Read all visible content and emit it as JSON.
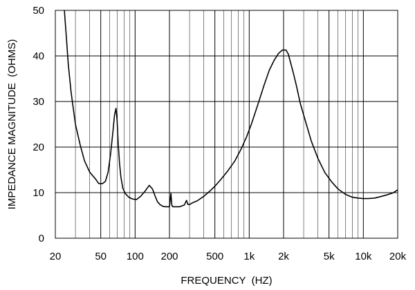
{
  "chart_data": {
    "type": "line",
    "title": "",
    "xlabel": "FREQUENCY  (HZ)",
    "ylabel": "IMPEDANCE MAGNITUDE  (OHMS)",
    "x_scale": "log",
    "xlim": [
      20,
      20000
    ],
    "ylim": [
      0,
      50
    ],
    "x_ticks": [
      20,
      50,
      100,
      200,
      500,
      1000,
      2000,
      5000,
      10000,
      20000
    ],
    "x_tick_labels": [
      "20",
      "50",
      "100",
      "200",
      "500",
      "1k",
      "2k",
      "5k",
      "10k",
      "20k"
    ],
    "y_ticks": [
      0,
      10,
      20,
      30,
      40,
      50
    ],
    "y_tick_labels": [
      "0",
      "10",
      "20",
      "30",
      "40",
      "50"
    ],
    "grid": true,
    "series": [
      {
        "x": [
          24,
          25,
          26,
          27.5,
          30,
          33,
          36,
          40,
          45,
          48,
          52,
          55,
          58,
          61,
          64,
          66,
          68,
          69.5,
          71,
          73,
          75,
          78,
          82,
          88,
          95,
          103,
          112,
          122,
          133,
          142,
          150,
          157,
          165,
          175,
          185,
          200,
          206,
          208,
          210,
          214,
          225,
          245,
          270,
          282,
          290,
          300,
          320,
          350,
          400,
          450,
          500,
          560,
          650,
          750,
          850,
          950,
          1050,
          1200,
          1350,
          1500,
          1650,
          1800,
          1950,
          2100,
          2200,
          2300,
          2450,
          2600,
          2800,
          3100,
          3500,
          4000,
          4600,
          5300,
          6000,
          7000,
          8000,
          9000,
          10000,
          11000,
          12500,
          14000,
          16000,
          18000,
          20000
        ],
        "y": [
          50,
          44,
          38,
          32,
          25,
          20.5,
          17,
          14.5,
          13,
          12,
          12,
          12.5,
          14.5,
          18.5,
          23.5,
          27,
          28.5,
          26,
          21,
          16.5,
          13.5,
          11,
          9.8,
          9,
          8.6,
          8.5,
          9.2,
          10.3,
          11.6,
          10.8,
          9.2,
          8,
          7.4,
          7,
          6.9,
          6.9,
          9.8,
          8.5,
          7.2,
          6.9,
          6.9,
          6.9,
          7.3,
          8.3,
          7.4,
          7.4,
          7.8,
          8.2,
          9.2,
          10.3,
          11.4,
          12.8,
          14.8,
          17,
          19.6,
          22.3,
          25.2,
          29.6,
          33.6,
          36.9,
          39,
          40.5,
          41.3,
          41.3,
          40.4,
          38.6,
          36,
          33.3,
          29.6,
          25.8,
          21.3,
          17.5,
          14.4,
          12.3,
          10.8,
          9.6,
          9,
          8.8,
          8.7,
          8.7,
          8.8,
          9.1,
          9.5,
          9.9,
          10.6
        ]
      }
    ]
  }
}
